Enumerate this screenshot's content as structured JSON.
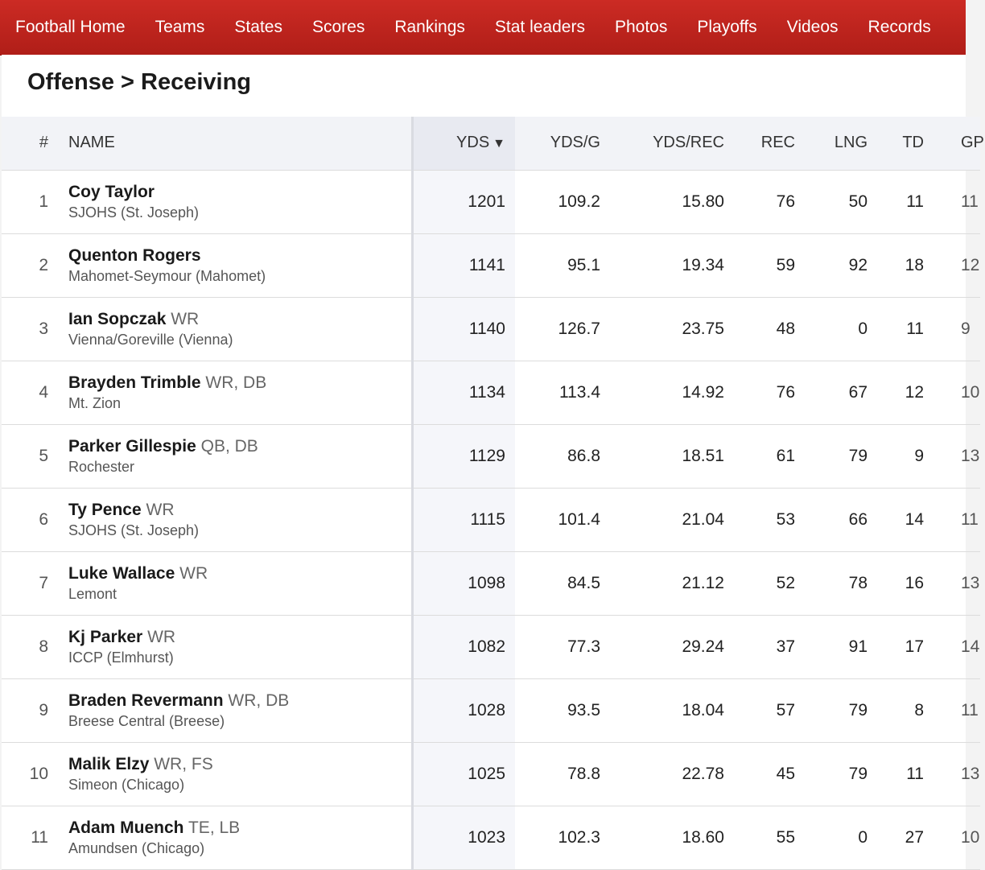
{
  "nav": {
    "items": [
      "Football Home",
      "Teams",
      "States",
      "Scores",
      "Rankings",
      "Stat leaders",
      "Photos",
      "Playoffs",
      "Videos",
      "Records"
    ]
  },
  "page": {
    "title": "Offense > Receiving"
  },
  "table": {
    "headers": {
      "rank": "#",
      "name": "NAME",
      "yds": "YDS",
      "yds_sort_arrow": "▼",
      "ydsg": "YDS/G",
      "ydsrec": "YDS/REC",
      "rec": "REC",
      "lng": "LNG",
      "td": "TD",
      "gp": "GP"
    },
    "rows": [
      {
        "rank": "1",
        "name": "Coy Taylor",
        "pos": "",
        "school": "SJOHS (St. Joseph)",
        "yds": "1201",
        "ydsg": "109.2",
        "ydsrec": "15.80",
        "rec": "76",
        "lng": "50",
        "td": "11",
        "gp": "11"
      },
      {
        "rank": "2",
        "name": "Quenton Rogers",
        "pos": "",
        "school": "Mahomet-Seymour (Mahomet)",
        "yds": "1141",
        "ydsg": "95.1",
        "ydsrec": "19.34",
        "rec": "59",
        "lng": "92",
        "td": "18",
        "gp": "12"
      },
      {
        "rank": "3",
        "name": "Ian Sopczak",
        "pos": "WR",
        "school": "Vienna/Goreville (Vienna)",
        "yds": "1140",
        "ydsg": "126.7",
        "ydsrec": "23.75",
        "rec": "48",
        "lng": "0",
        "td": "11",
        "gp": "9"
      },
      {
        "rank": "4",
        "name": "Brayden Trimble",
        "pos": "WR, DB",
        "school": "Mt. Zion",
        "yds": "1134",
        "ydsg": "113.4",
        "ydsrec": "14.92",
        "rec": "76",
        "lng": "67",
        "td": "12",
        "gp": "10"
      },
      {
        "rank": "5",
        "name": "Parker Gillespie",
        "pos": "QB, DB",
        "school": "Rochester",
        "yds": "1129",
        "ydsg": "86.8",
        "ydsrec": "18.51",
        "rec": "61",
        "lng": "79",
        "td": "9",
        "gp": "13"
      },
      {
        "rank": "6",
        "name": "Ty Pence",
        "pos": "WR",
        "school": "SJOHS (St. Joseph)",
        "yds": "1115",
        "ydsg": "101.4",
        "ydsrec": "21.04",
        "rec": "53",
        "lng": "66",
        "td": "14",
        "gp": "11"
      },
      {
        "rank": "7",
        "name": "Luke Wallace",
        "pos": "WR",
        "school": "Lemont",
        "yds": "1098",
        "ydsg": "84.5",
        "ydsrec": "21.12",
        "rec": "52",
        "lng": "78",
        "td": "16",
        "gp": "13"
      },
      {
        "rank": "8",
        "name": "Kj Parker",
        "pos": "WR",
        "school": "ICCP (Elmhurst)",
        "yds": "1082",
        "ydsg": "77.3",
        "ydsrec": "29.24",
        "rec": "37",
        "lng": "91",
        "td": "17",
        "gp": "14"
      },
      {
        "rank": "9",
        "name": "Braden Revermann",
        "pos": "WR, DB",
        "school": "Breese Central (Breese)",
        "yds": "1028",
        "ydsg": "93.5",
        "ydsrec": "18.04",
        "rec": "57",
        "lng": "79",
        "td": "8",
        "gp": "11"
      },
      {
        "rank": "10",
        "name": "Malik Elzy",
        "pos": "WR, FS",
        "school": "Simeon (Chicago)",
        "yds": "1025",
        "ydsg": "78.8",
        "ydsrec": "22.78",
        "rec": "45",
        "lng": "79",
        "td": "11",
        "gp": "13"
      },
      {
        "rank": "11",
        "name": "Adam Muench",
        "pos": "TE, LB",
        "school": "Amundsen (Chicago)",
        "yds": "1023",
        "ydsg": "102.3",
        "ydsrec": "18.60",
        "rec": "55",
        "lng": "0",
        "td": "27",
        "gp": "10"
      }
    ]
  }
}
